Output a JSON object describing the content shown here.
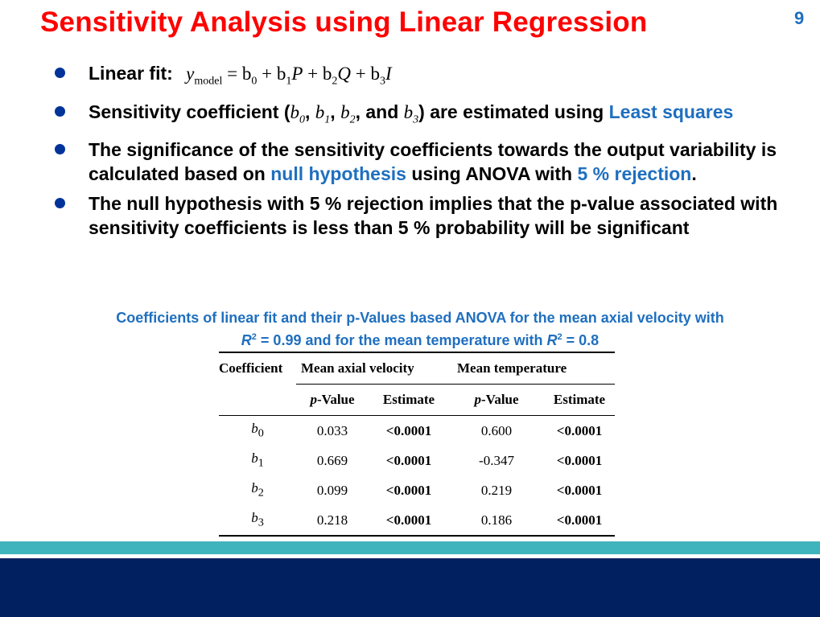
{
  "slide": {
    "title": "Sensitivity Analysis using Linear Regression",
    "page_number": "9"
  },
  "bullets": {
    "b1": {
      "label": "Linear fit:",
      "eq_y": "y",
      "eq_sub_model": "model",
      "eq_eq": " = b",
      "eq_s0": "0",
      "eq_p1": " + b",
      "eq_s1": "1",
      "eq_P": "P",
      "eq_p2": " + b",
      "eq_s2": "2",
      "eq_Q": "Q",
      "eq_p3": " + b",
      "eq_s3": "3",
      "eq_I": "I"
    },
    "b2": {
      "t1": "Sensitivity coefficient (",
      "b0": "b",
      "s0": "0",
      "c1": ", ",
      "b1": "b",
      "s1": "1",
      "c2": ", ",
      "b2": "b",
      "s2": "2",
      "c3": ", and ",
      "b3": "b",
      "s3": "3",
      "t2": ") are estimated using ",
      "highlight": "Least squares"
    },
    "b3": {
      "t1": "The significance of the sensitivity coefficients towards the output variability is calculated based on ",
      "h1": "null hypothesis",
      "t2": " using ANOVA with ",
      "h2": "5 % rejection",
      "t3": "."
    },
    "b4": {
      "text": "The null hypothesis with 5 % rejection implies that the p-value associated with sensitivity coefficients is less than 5 % probability will be significant"
    }
  },
  "caption": {
    "line1": "Coefficients of linear fit and their p-Values based ANOVA for the mean axial velocity with",
    "r1": "R",
    "sup1": "2",
    "mid": " = 0.99 and for the mean temperature with ",
    "r2": "R",
    "sup2": "2",
    "end": " = 0.8"
  },
  "table": {
    "h_coef": "Coefficient",
    "h_vel": "Mean axial velocity",
    "h_temp": "Mean temperature",
    "sub_p": "p",
    "sub_pval": "-Value",
    "sub_est": "Estimate",
    "rows": [
      {
        "b": "b",
        "sub": "0",
        "vel_p": "0.033",
        "vel_est": "<0.0001",
        "temp_p": "0.600",
        "temp_est": "<0.0001"
      },
      {
        "b": "b",
        "sub": "1",
        "vel_p": "0.669",
        "vel_est": "<0.0001",
        "temp_p": "-0.347",
        "temp_est": "<0.0001"
      },
      {
        "b": "b",
        "sub": "2",
        "vel_p": "0.099",
        "vel_est": "<0.0001",
        "temp_p": "0.219",
        "temp_est": "<0.0001"
      },
      {
        "b": "b",
        "sub": "3",
        "vel_p": "0.218",
        "vel_est": "<0.0001",
        "temp_p": "0.186",
        "temp_est": "<0.0001"
      }
    ]
  },
  "colors": {
    "title": "#ff0000",
    "accent": "#1f6fbf",
    "bullet": "#003399",
    "teal_band": "#40b4bc",
    "navy_band": "#002060"
  }
}
